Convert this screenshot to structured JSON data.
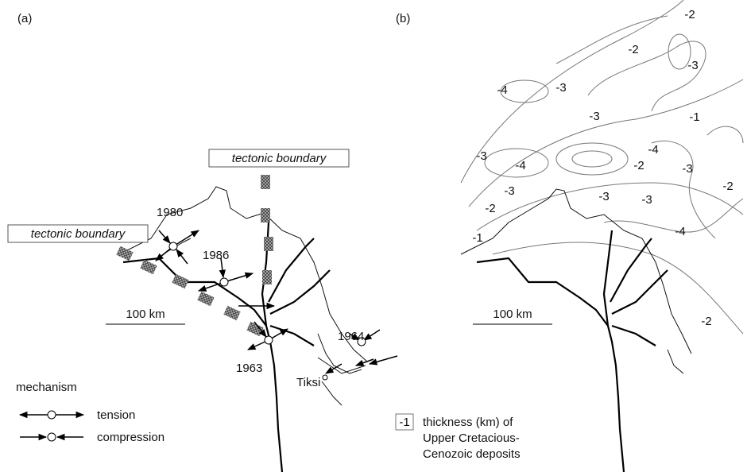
{
  "panel_a": {
    "label": "(a)",
    "boundary_labels": [
      "tectonic boundary",
      "tectonic boundary"
    ],
    "events": [
      "1980",
      "1986",
      "1964",
      "1963"
    ],
    "place": "Tiksi",
    "scale": "100 km",
    "legend": {
      "title": "mechanism",
      "items": [
        "tension",
        "compression"
      ]
    }
  },
  "panel_b": {
    "label": "(b)",
    "contour_labels": [
      "-2",
      "-2",
      "-3",
      "-3",
      "-4",
      "-3",
      "-1",
      "-4",
      "-3",
      "-4",
      "-2",
      "-3",
      "-2",
      "-3",
      "-3",
      "-3",
      "-2",
      "-1",
      "-4",
      "-2"
    ],
    "scale": "100 km",
    "legend": {
      "sample": "-1",
      "lines": [
        "thickness (km) of",
        "Upper Cretacious-",
        "Cenozoic deposits"
      ]
    }
  }
}
